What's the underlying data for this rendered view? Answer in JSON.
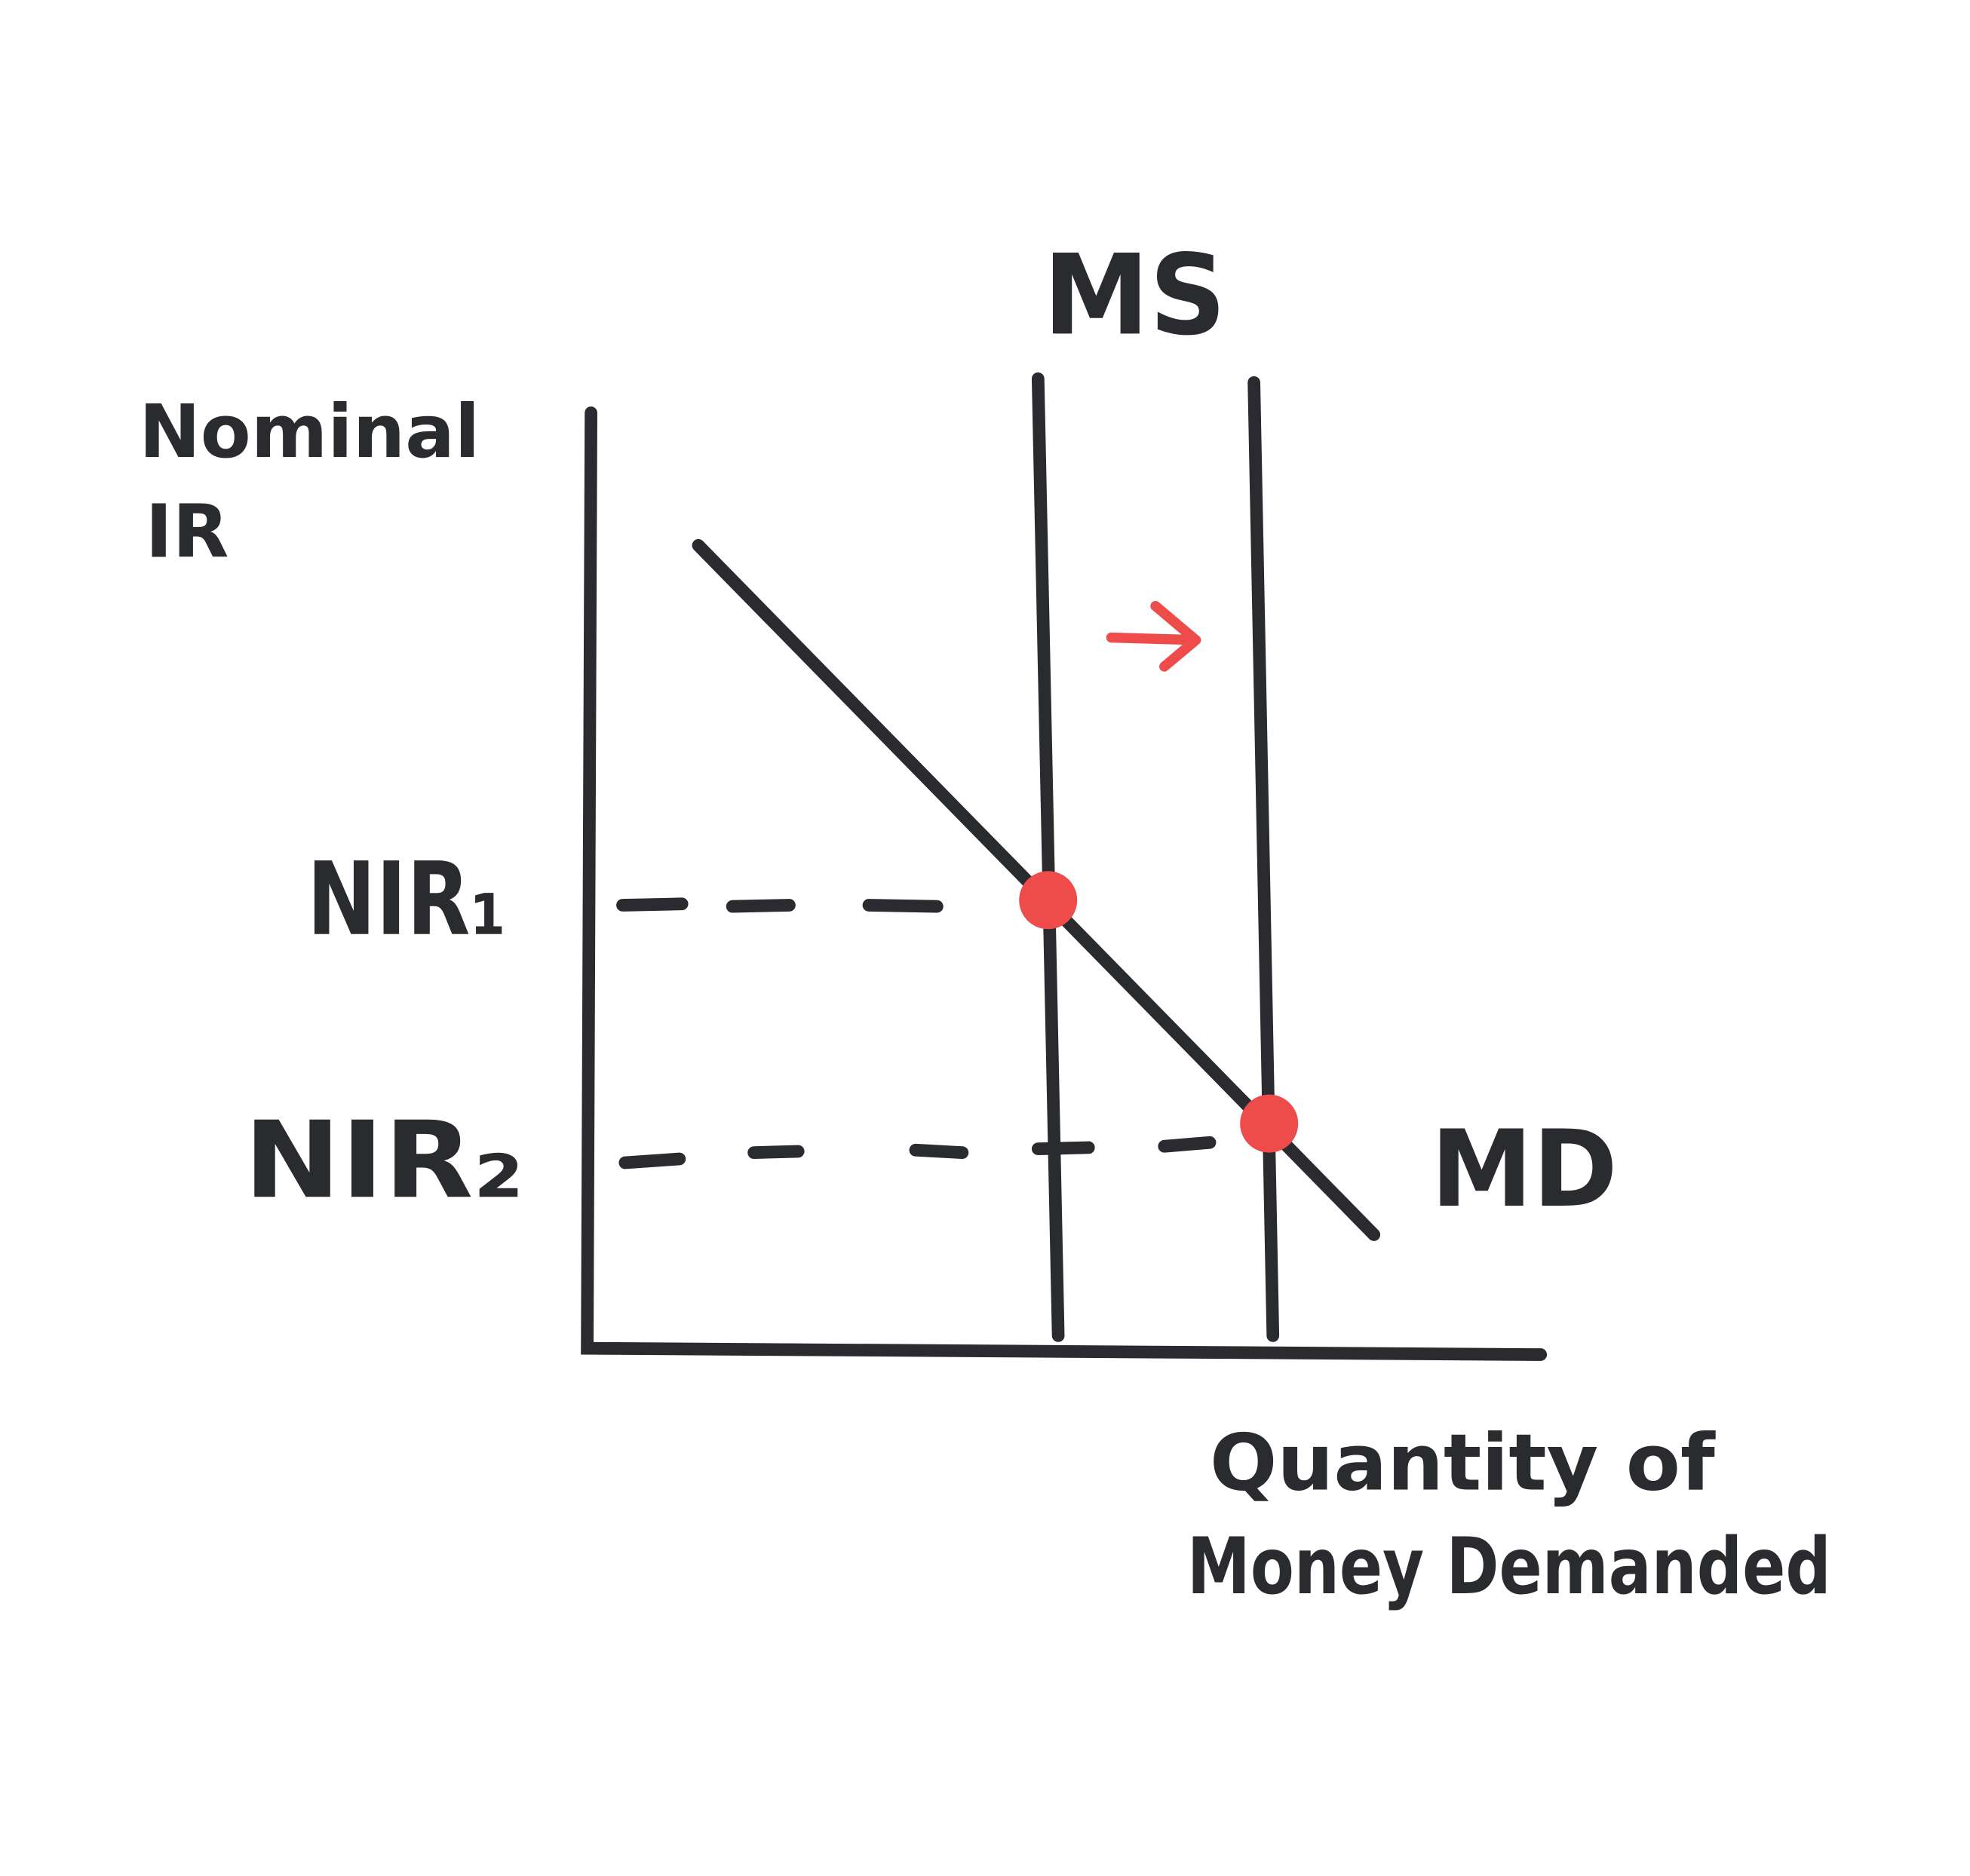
{
  "labels": {
    "y_axis": [
      "Nominal",
      "IR"
    ],
    "x_axis": [
      "Quantity of",
      "Money Demanded"
    ],
    "supply_curve": "MS",
    "demand_curve": "MD",
    "rates": [
      "NIR₁",
      "NIR₂"
    ]
  }
}
